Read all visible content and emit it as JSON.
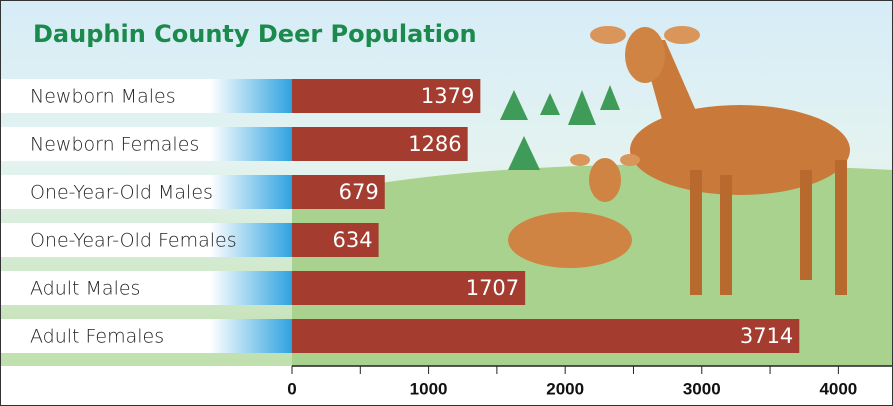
{
  "chart_data": {
    "type": "hbar",
    "title": "Dauphin County Deer Population",
    "categories": [
      "Newborn Males",
      "Newborn Females",
      "One-Year-Old Males",
      "One-Year-Old Females",
      "Adult Males",
      "Adult Females"
    ],
    "values": [
      1379,
      1286,
      679,
      634,
      1707,
      3714
    ],
    "color": "#a43c2f",
    "xlim": [
      0,
      4400
    ],
    "xticks": [
      0,
      1000,
      2000,
      3000,
      4000
    ],
    "minor_xticks": [
      500,
      1500,
      2500,
      3500
    ]
  }
}
